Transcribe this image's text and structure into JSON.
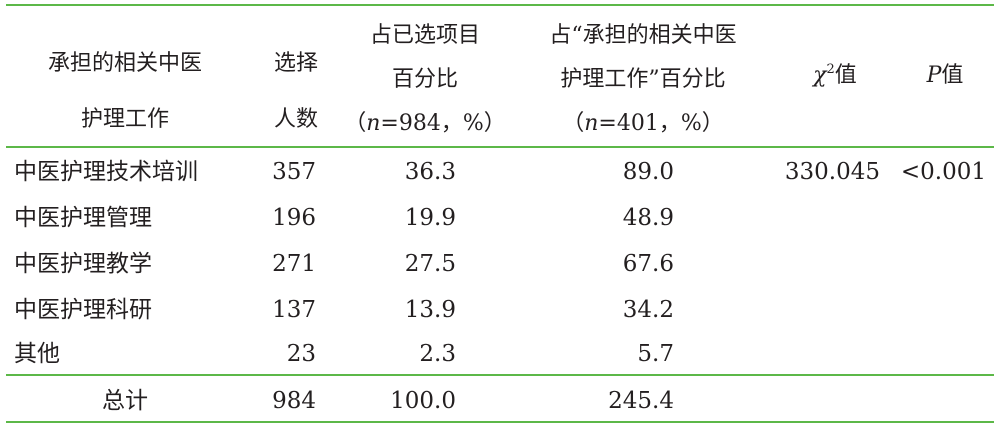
{
  "table": {
    "header": {
      "work_l1": "承担的相关中医",
      "work_l2": "护理工作",
      "count_l1": "选择",
      "count_l2": "人数",
      "pct_sel_l1": "占已选项目",
      "pct_sel_l2": "百分比",
      "pct_sel_n_pre": "（",
      "pct_sel_n_var": "n",
      "pct_sel_n_post": "=984，%）",
      "pct_work_l1": "占“承担的相关中医",
      "pct_work_l2": "护理工作”百分比",
      "pct_work_n_pre": "（",
      "pct_work_n_var": "n",
      "pct_work_n_post": "=401，%）",
      "chi_sym": "χ",
      "chi_sup": "2",
      "chi_suffix": "值",
      "p_var": "P",
      "p_suffix": "值"
    },
    "rows": [
      {
        "work": "中医护理技术培训",
        "count": "357",
        "pct_sel": "36.3",
        "pct_work": "89.0",
        "chi": "330.045",
        "p": "<0.001"
      },
      {
        "work": "中医护理管理",
        "count": "196",
        "pct_sel": "19.9",
        "pct_work": "48.9",
        "chi": "",
        "p": ""
      },
      {
        "work": "中医护理教学",
        "count": "271",
        "pct_sel": "27.5",
        "pct_work": "67.6",
        "chi": "",
        "p": ""
      },
      {
        "work": "中医护理科研",
        "count": "137",
        "pct_sel": "13.9",
        "pct_work": "34.2",
        "chi": "",
        "p": ""
      },
      {
        "work": "其他",
        "count": "23",
        "pct_sel": "2.3",
        "pct_work": "5.7",
        "chi": "",
        "p": ""
      }
    ],
    "total": {
      "work": "总计",
      "count": "984",
      "pct_sel": "100.0",
      "pct_work": "245.4"
    }
  }
}
